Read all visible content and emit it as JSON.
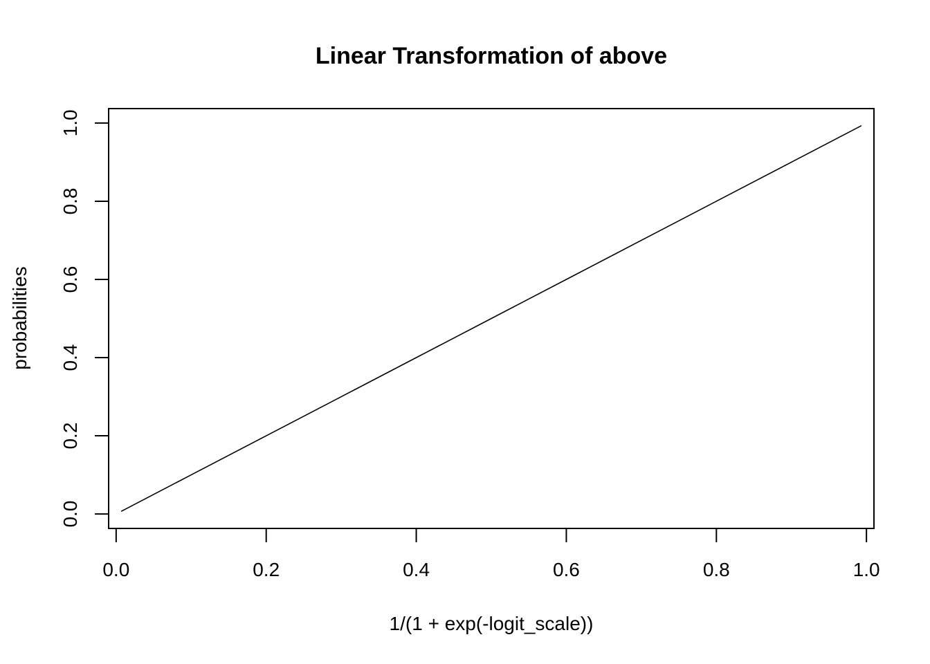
{
  "chart_data": {
    "type": "line",
    "title": "Linear Transformation of above",
    "xlabel": "1/(1 + exp(-logit_scale))",
    "ylabel": "probabilities",
    "xlim": [
      -0.01,
      1.01
    ],
    "ylim": [
      -0.037,
      1.037
    ],
    "x_ticks": [
      0.0,
      0.2,
      0.4,
      0.6,
      0.8,
      1.0
    ],
    "x_tick_labels": [
      "0.0",
      "0.2",
      "0.4",
      "0.6",
      "0.8",
      "1.0"
    ],
    "y_ticks": [
      0.0,
      0.2,
      0.4,
      0.6,
      0.8,
      1.0
    ],
    "y_tick_labels": [
      "0.0",
      "0.2",
      "0.4",
      "0.6",
      "0.8",
      "1.0"
    ],
    "grid": false,
    "legend": "none",
    "line_color": "#000000",
    "series": [
      {
        "x": [
          0.0067,
          0.1,
          0.2,
          0.3,
          0.4,
          0.5,
          0.6,
          0.7,
          0.8,
          0.9,
          0.9933
        ],
        "y": [
          0.0067,
          0.1,
          0.2,
          0.3,
          0.4,
          0.5,
          0.6,
          0.7,
          0.8,
          0.9,
          0.9933
        ]
      }
    ]
  }
}
